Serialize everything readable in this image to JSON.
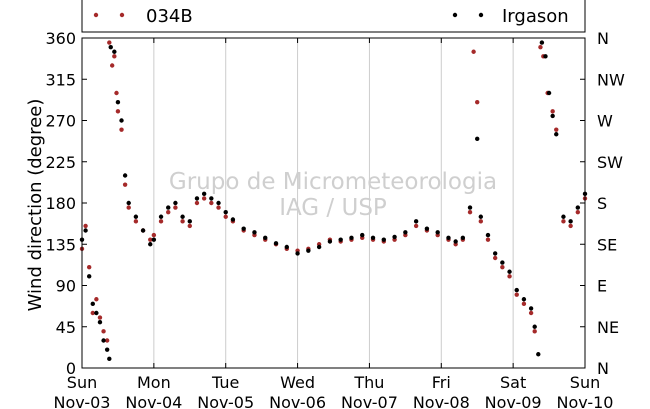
{
  "chart_data": {
    "type": "scatter",
    "title": "",
    "ylabel": "Wind direction (degree)",
    "ylim": [
      0,
      360
    ],
    "yticks": [
      0,
      45,
      90,
      135,
      180,
      225,
      270,
      315,
      360
    ],
    "yticks_right": [
      "N",
      "NE",
      "E",
      "SE",
      "S",
      "SW",
      "W",
      "NW",
      "N"
    ],
    "xlim": [
      0,
      7
    ],
    "xticks": [
      {
        "day": "Sun",
        "date": "Nov-03"
      },
      {
        "day": "Mon",
        "date": "Nov-04"
      },
      {
        "day": "Tue",
        "date": "Nov-05"
      },
      {
        "day": "Wed",
        "date": "Nov-06"
      },
      {
        "day": "Thu",
        "date": "Nov-07"
      },
      {
        "day": "Fri",
        "date": "Nov-08"
      },
      {
        "day": "Sat",
        "date": "Nov-09"
      },
      {
        "day": "Sun",
        "date": "Nov-10"
      }
    ],
    "grid": "vertical",
    "legend_position": "top",
    "watermark": [
      "Grupo de Micrometeorologia",
      "IAG / USP"
    ],
    "series": [
      {
        "name": "034B",
        "color": "#a52a2a",
        "points": [
          [
            0.0,
            130
          ],
          [
            0.05,
            155
          ],
          [
            0.1,
            110
          ],
          [
            0.15,
            60
          ],
          [
            0.2,
            75
          ],
          [
            0.25,
            55
          ],
          [
            0.3,
            40
          ],
          [
            0.35,
            30
          ],
          [
            0.38,
            355
          ],
          [
            0.42,
            330
          ],
          [
            0.45,
            340
          ],
          [
            0.48,
            300
          ],
          [
            0.5,
            280
          ],
          [
            0.55,
            260
          ],
          [
            0.6,
            200
          ],
          [
            0.65,
            175
          ],
          [
            0.75,
            160
          ],
          [
            0.85,
            150
          ],
          [
            0.95,
            140
          ],
          [
            1.0,
            145
          ],
          [
            1.1,
            160
          ],
          [
            1.2,
            170
          ],
          [
            1.3,
            175
          ],
          [
            1.4,
            160
          ],
          [
            1.5,
            155
          ],
          [
            1.6,
            180
          ],
          [
            1.7,
            185
          ],
          [
            1.8,
            180
          ],
          [
            1.9,
            175
          ],
          [
            2.0,
            165
          ],
          [
            2.1,
            160
          ],
          [
            2.25,
            150
          ],
          [
            2.4,
            145
          ],
          [
            2.55,
            140
          ],
          [
            2.7,
            135
          ],
          [
            2.85,
            130
          ],
          [
            3.0,
            128
          ],
          [
            3.15,
            130
          ],
          [
            3.3,
            135
          ],
          [
            3.45,
            140
          ],
          [
            3.6,
            138
          ],
          [
            3.75,
            140
          ],
          [
            3.9,
            142
          ],
          [
            4.05,
            140
          ],
          [
            4.2,
            138
          ],
          [
            4.35,
            140
          ],
          [
            4.5,
            145
          ],
          [
            4.65,
            155
          ],
          [
            4.8,
            150
          ],
          [
            4.95,
            145
          ],
          [
            5.1,
            140
          ],
          [
            5.2,
            135
          ],
          [
            5.3,
            140
          ],
          [
            5.4,
            170
          ],
          [
            5.45,
            345
          ],
          [
            5.5,
            290
          ],
          [
            5.55,
            160
          ],
          [
            5.65,
            140
          ],
          [
            5.75,
            120
          ],
          [
            5.85,
            110
          ],
          [
            5.95,
            100
          ],
          [
            6.05,
            80
          ],
          [
            6.15,
            70
          ],
          [
            6.25,
            60
          ],
          [
            6.3,
            40
          ],
          [
            6.38,
            350
          ],
          [
            6.42,
            340
          ],
          [
            6.48,
            300
          ],
          [
            6.55,
            280
          ],
          [
            6.6,
            260
          ],
          [
            6.7,
            160
          ],
          [
            6.8,
            155
          ],
          [
            6.9,
            170
          ],
          [
            7.0,
            185
          ]
        ]
      },
      {
        "name": "Irgason",
        "color": "#000000",
        "points": [
          [
            0.0,
            140
          ],
          [
            0.05,
            150
          ],
          [
            0.1,
            100
          ],
          [
            0.15,
            70
          ],
          [
            0.2,
            60
          ],
          [
            0.25,
            50
          ],
          [
            0.3,
            30
          ],
          [
            0.35,
            20
          ],
          [
            0.38,
            10
          ],
          [
            0.4,
            350
          ],
          [
            0.45,
            345
          ],
          [
            0.5,
            290
          ],
          [
            0.55,
            270
          ],
          [
            0.6,
            210
          ],
          [
            0.65,
            180
          ],
          [
            0.75,
            165
          ],
          [
            0.85,
            150
          ],
          [
            0.95,
            135
          ],
          [
            1.0,
            140
          ],
          [
            1.1,
            165
          ],
          [
            1.2,
            175
          ],
          [
            1.3,
            180
          ],
          [
            1.4,
            165
          ],
          [
            1.5,
            160
          ],
          [
            1.6,
            185
          ],
          [
            1.7,
            190
          ],
          [
            1.8,
            185
          ],
          [
            1.9,
            180
          ],
          [
            2.0,
            170
          ],
          [
            2.1,
            162
          ],
          [
            2.25,
            152
          ],
          [
            2.4,
            148
          ],
          [
            2.55,
            142
          ],
          [
            2.7,
            136
          ],
          [
            2.85,
            132
          ],
          [
            3.0,
            125
          ],
          [
            3.15,
            128
          ],
          [
            3.3,
            132
          ],
          [
            3.45,
            138
          ],
          [
            3.6,
            140
          ],
          [
            3.75,
            142
          ],
          [
            3.9,
            145
          ],
          [
            4.05,
            142
          ],
          [
            4.2,
            140
          ],
          [
            4.35,
            143
          ],
          [
            4.5,
            148
          ],
          [
            4.65,
            160
          ],
          [
            4.8,
            152
          ],
          [
            4.95,
            148
          ],
          [
            5.1,
            142
          ],
          [
            5.2,
            138
          ],
          [
            5.3,
            142
          ],
          [
            5.4,
            175
          ],
          [
            5.5,
            250
          ],
          [
            5.55,
            165
          ],
          [
            5.65,
            145
          ],
          [
            5.75,
            125
          ],
          [
            5.85,
            115
          ],
          [
            5.95,
            105
          ],
          [
            6.05,
            85
          ],
          [
            6.15,
            75
          ],
          [
            6.25,
            65
          ],
          [
            6.3,
            45
          ],
          [
            6.35,
            15
          ],
          [
            6.4,
            355
          ],
          [
            6.45,
            340
          ],
          [
            6.5,
            300
          ],
          [
            6.55,
            275
          ],
          [
            6.6,
            255
          ],
          [
            6.7,
            165
          ],
          [
            6.8,
            160
          ],
          [
            6.9,
            175
          ],
          [
            7.0,
            190
          ]
        ]
      }
    ]
  }
}
